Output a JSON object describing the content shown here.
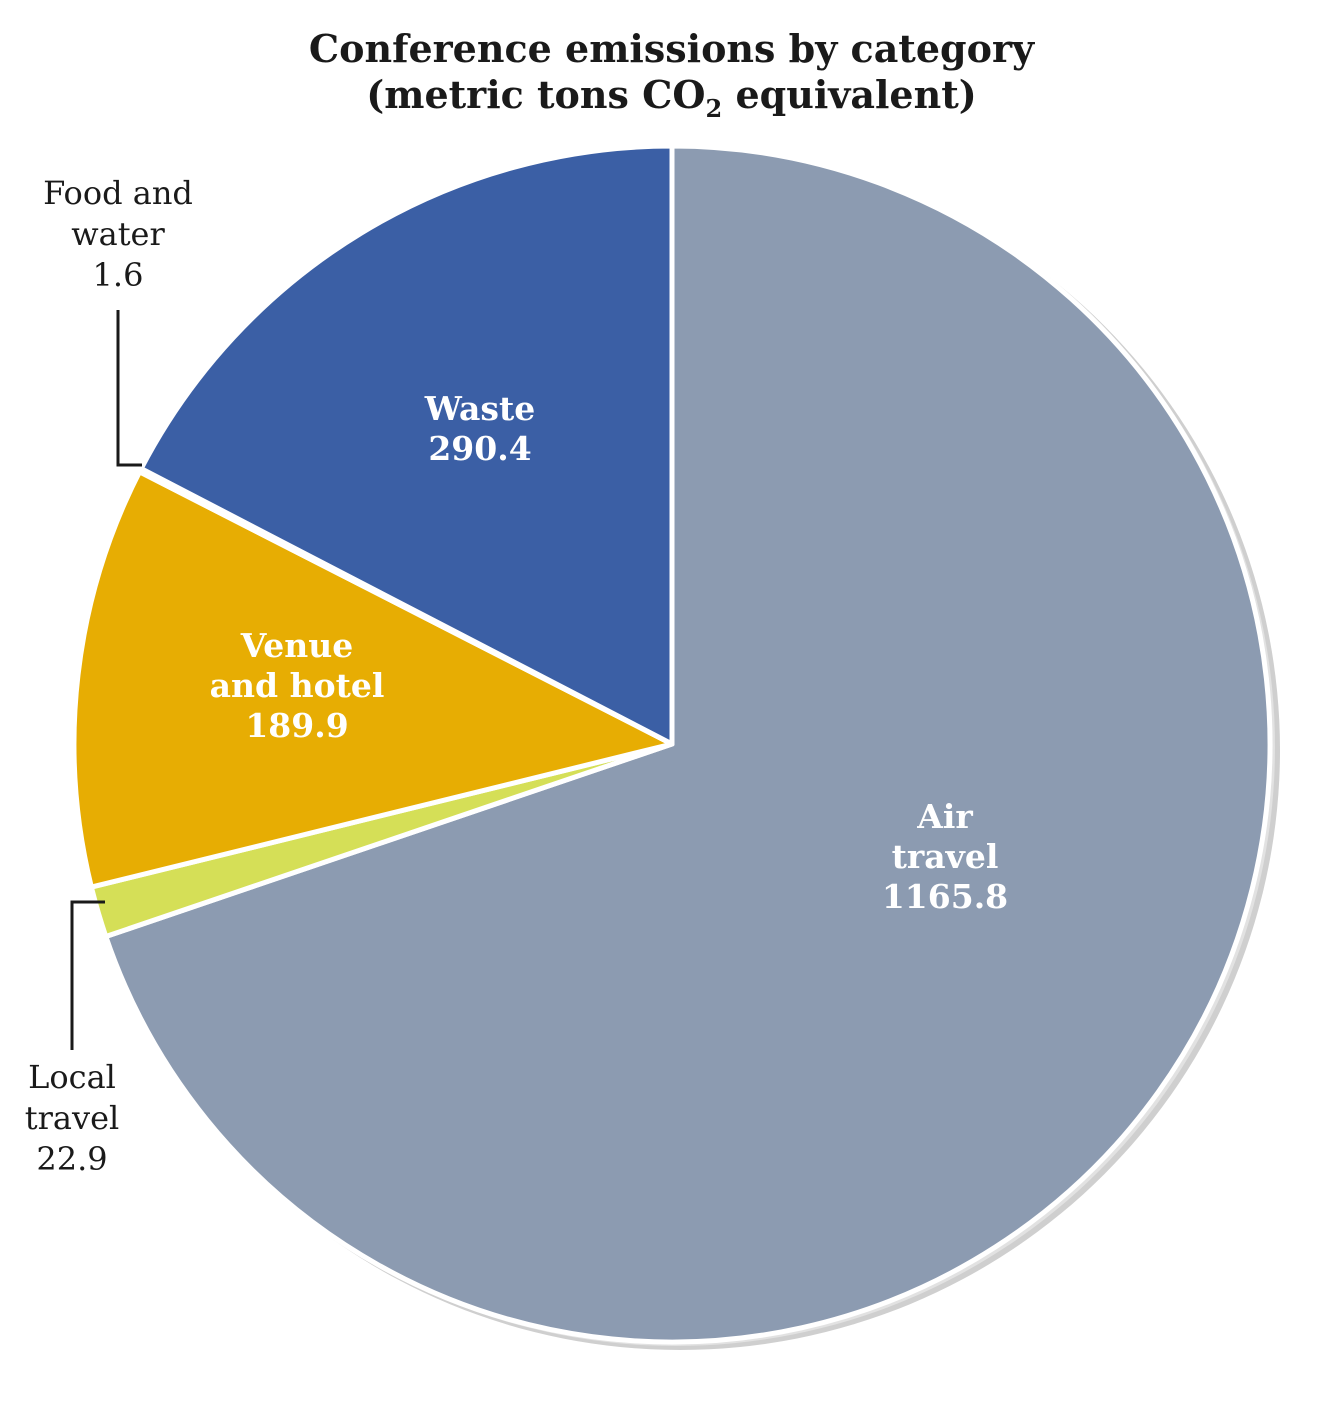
{
  "chart_data": {
    "type": "pie",
    "title_line1": "Conference emissions by category",
    "title_line2_pre": "(metric tons CO",
    "title_line2_sub": "2",
    "title_line2_post": " equivalent)",
    "slices": [
      {
        "label_lines": [
          "Air",
          "travel"
        ],
        "value": 1165.8,
        "value_text": "1165.8",
        "color": "#8c9bb1"
      },
      {
        "label_lines": [
          "Local",
          "travel"
        ],
        "value": 22.9,
        "value_text": "22.9",
        "color": "#d5df57"
      },
      {
        "label_lines": [
          "Venue",
          "and hotel"
        ],
        "value": 189.9,
        "value_text": "189.9",
        "color": "#e7ad03"
      },
      {
        "label_lines": [
          "Food and",
          "water"
        ],
        "value": 1.6,
        "value_text": "1.6",
        "color": "#1e8a5a"
      },
      {
        "label_lines": [
          "Waste"
        ],
        "value": 290.4,
        "value_text": "290.4",
        "color": "#3b5fa5"
      }
    ]
  }
}
